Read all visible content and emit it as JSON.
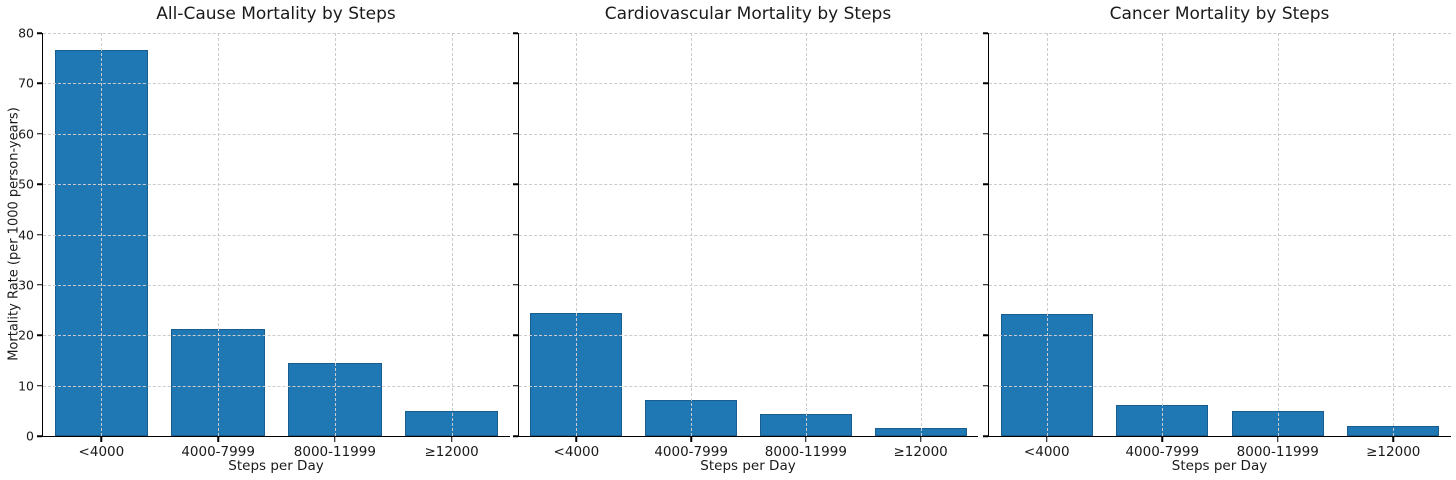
{
  "figure": {
    "background": "#ffffff",
    "bar_color": "#1f77b4",
    "bar_edge_color": "#175e8e",
    "grid_color": "#cccccc",
    "axis_color": "#000000",
    "text_color": "#1a1a1a",
    "y_ticks": [
      0,
      10,
      20,
      30,
      40,
      50,
      60,
      70,
      80
    ]
  },
  "chart_data": [
    {
      "type": "bar",
      "title": "All-Cause Mortality by Steps",
      "categories": [
        "<4000",
        "4000-7999",
        "8000-11999",
        "≥12000"
      ],
      "values": [
        76.7,
        21.3,
        14.4,
        4.9
      ],
      "xlabel": "Steps per Day",
      "ylabel": "Mortality Rate (per 1000 person-years)",
      "ylim": [
        0,
        80
      ],
      "grid": true,
      "legend": "none",
      "show_y_tick_labels": true
    },
    {
      "type": "bar",
      "title": "Cardiovascular Mortality by Steps",
      "categories": [
        "<4000",
        "4000-7999",
        "8000-11999",
        "≥12000"
      ],
      "values": [
        24.4,
        7.2,
        4.3,
        1.5
      ],
      "xlabel": "Steps per Day",
      "ylim": [
        0,
        80
      ],
      "grid": true,
      "legend": "none",
      "show_y_tick_labels": false
    },
    {
      "type": "bar",
      "title": "Cancer Mortality by Steps",
      "categories": [
        "<4000",
        "4000-7999",
        "8000-11999",
        "≥12000"
      ],
      "values": [
        24.2,
        6.2,
        5.0,
        1.9
      ],
      "xlabel": "Steps per Day",
      "ylim": [
        0,
        80
      ],
      "grid": true,
      "legend": "none",
      "show_y_tick_labels": false
    }
  ]
}
